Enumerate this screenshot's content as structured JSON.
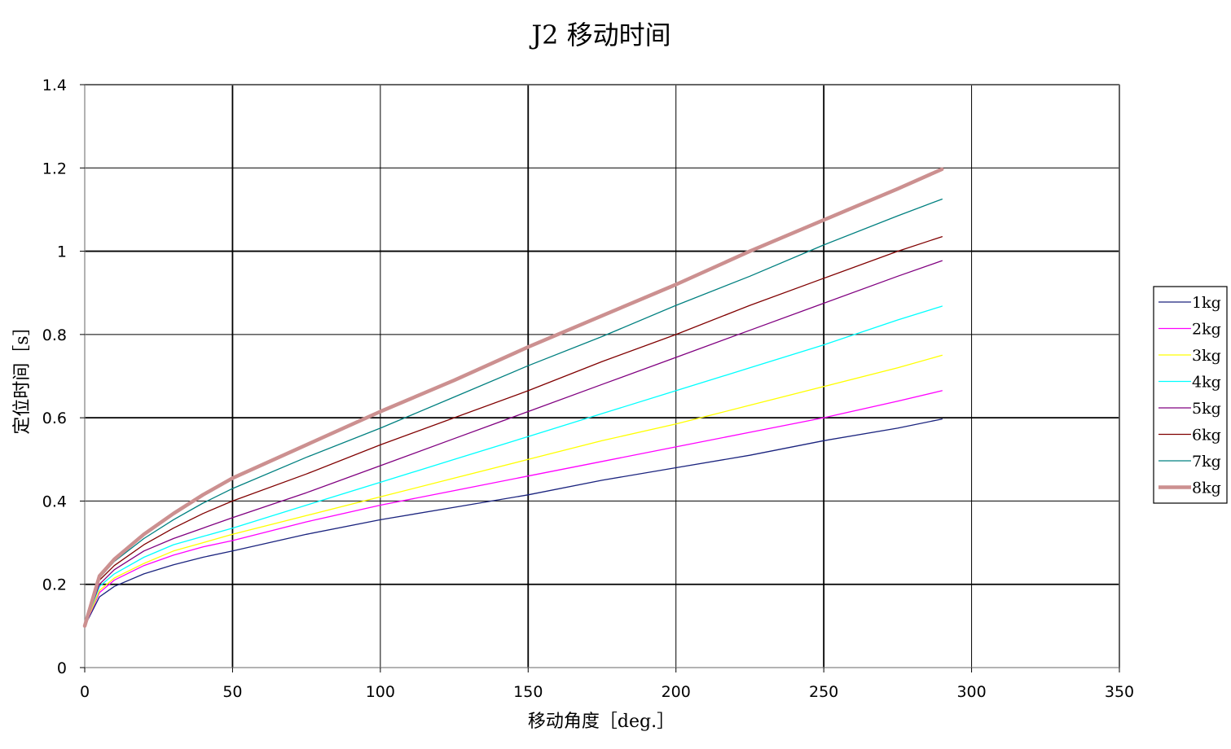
{
  "chart_data": {
    "type": "line",
    "title": "J2 移动时间",
    "xlabel": "移动角度［deg.］",
    "ylabel": "定位时间［s］",
    "xlim": [
      0,
      350
    ],
    "ylim": [
      0,
      1.4
    ],
    "xticks": [
      "0",
      "50",
      "100",
      "150",
      "200",
      "250",
      "300",
      "350"
    ],
    "yticks": [
      "0",
      "0.2",
      "0.4",
      "0.6",
      "0.8",
      "1",
      "1.2",
      "1.4"
    ],
    "grid": true,
    "legend_position": "right",
    "series": [
      {
        "name": "1kg",
        "color": "#1a237e",
        "x": [
          0,
          5,
          10,
          20,
          30,
          40,
          50,
          75,
          100,
          125,
          150,
          175,
          200,
          225,
          250,
          275,
          290
        ],
        "y": [
          0.1,
          0.17,
          0.195,
          0.225,
          0.247,
          0.265,
          0.28,
          0.32,
          0.355,
          0.385,
          0.415,
          0.45,
          0.48,
          0.51,
          0.545,
          0.575,
          0.597
        ]
      },
      {
        "name": "2kg",
        "color": "#ff00ff",
        "x": [
          0,
          5,
          10,
          20,
          30,
          40,
          50,
          75,
          100,
          125,
          150,
          175,
          200,
          225,
          250,
          275,
          290
        ],
        "y": [
          0.1,
          0.18,
          0.21,
          0.245,
          0.27,
          0.29,
          0.305,
          0.35,
          0.39,
          0.425,
          0.46,
          0.495,
          0.53,
          0.565,
          0.6,
          0.64,
          0.665
        ]
      },
      {
        "name": "3kg",
        "color": "#ffff00",
        "x": [
          0,
          5,
          10,
          20,
          30,
          40,
          50,
          75,
          100,
          125,
          150,
          175,
          200,
          225,
          250,
          275,
          290
        ],
        "y": [
          0.1,
          0.185,
          0.215,
          0.25,
          0.28,
          0.3,
          0.32,
          0.365,
          0.41,
          0.455,
          0.5,
          0.545,
          0.585,
          0.63,
          0.675,
          0.72,
          0.75
        ]
      },
      {
        "name": "4kg",
        "color": "#00ffff",
        "x": [
          0,
          5,
          10,
          20,
          30,
          40,
          50,
          75,
          100,
          125,
          150,
          175,
          200,
          225,
          250,
          275,
          290
        ],
        "y": [
          0.1,
          0.195,
          0.225,
          0.265,
          0.295,
          0.315,
          0.335,
          0.39,
          0.445,
          0.5,
          0.555,
          0.61,
          0.665,
          0.72,
          0.775,
          0.835,
          0.868
        ]
      },
      {
        "name": "5kg",
        "color": "#800080",
        "x": [
          0,
          5,
          10,
          20,
          30,
          40,
          50,
          75,
          100,
          125,
          150,
          175,
          200,
          225,
          250,
          275,
          290
        ],
        "y": [
          0.1,
          0.2,
          0.235,
          0.28,
          0.31,
          0.335,
          0.36,
          0.42,
          0.485,
          0.55,
          0.615,
          0.68,
          0.745,
          0.81,
          0.875,
          0.94,
          0.977
        ]
      },
      {
        "name": "6kg",
        "color": "#800000",
        "x": [
          0,
          5,
          10,
          20,
          30,
          40,
          50,
          75,
          100,
          125,
          150,
          175,
          200,
          225,
          250,
          275,
          290
        ],
        "y": [
          0.1,
          0.21,
          0.245,
          0.295,
          0.335,
          0.37,
          0.4,
          0.465,
          0.535,
          0.6,
          0.665,
          0.735,
          0.8,
          0.87,
          0.935,
          1.0,
          1.035
        ]
      },
      {
        "name": "7kg",
        "color": "#008080",
        "x": [
          0,
          5,
          10,
          20,
          30,
          40,
          50,
          75,
          100,
          125,
          150,
          175,
          200,
          225,
          250,
          275,
          290
        ],
        "y": [
          0.1,
          0.215,
          0.255,
          0.31,
          0.355,
          0.395,
          0.43,
          0.505,
          0.575,
          0.65,
          0.725,
          0.795,
          0.87,
          0.94,
          1.015,
          1.085,
          1.125
        ]
      },
      {
        "name": "8kg",
        "color": "#cc9090",
        "x": [
          0,
          5,
          10,
          20,
          30,
          40,
          50,
          75,
          100,
          125,
          150,
          175,
          200,
          225,
          250,
          275,
          290
        ],
        "y": [
          0.1,
          0.22,
          0.26,
          0.32,
          0.37,
          0.415,
          0.455,
          0.535,
          0.615,
          0.69,
          0.77,
          0.845,
          0.92,
          1.0,
          1.075,
          1.15,
          1.197
        ]
      }
    ]
  }
}
